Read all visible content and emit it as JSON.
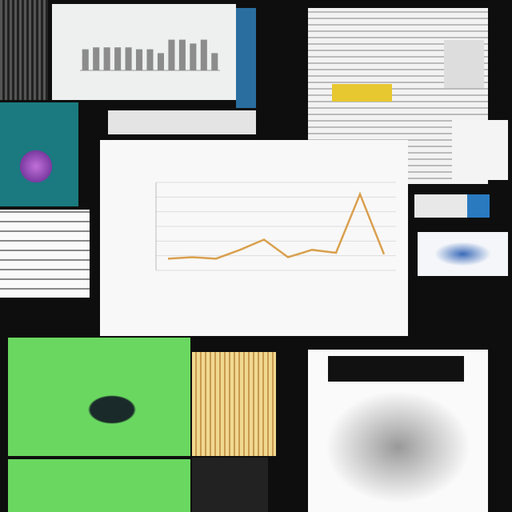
{
  "chart_data": [
    {
      "type": "line",
      "color": "#d9a04e",
      "x": [
        0,
        1,
        2,
        3,
        4,
        5,
        6,
        7,
        8,
        9
      ],
      "values": [
        0.8,
        0.9,
        0.8,
        1.4,
        2.1,
        0.9,
        1.4,
        1.2,
        5.2,
        1.1
      ],
      "xlim": [
        -0.5,
        9.5
      ],
      "ylim": [
        0,
        6
      ],
      "yticks": [
        0,
        1,
        2,
        3,
        4,
        5,
        6
      ],
      "grid": true
    },
    {
      "type": "bar",
      "color": "#8c8c8c",
      "values": [
        5.5,
        6,
        6,
        6,
        6,
        5.5,
        5.5,
        4.5,
        8,
        8,
        7,
        8,
        4.5
      ],
      "ylim": [
        0,
        10
      ],
      "grid": true
    }
  ]
}
